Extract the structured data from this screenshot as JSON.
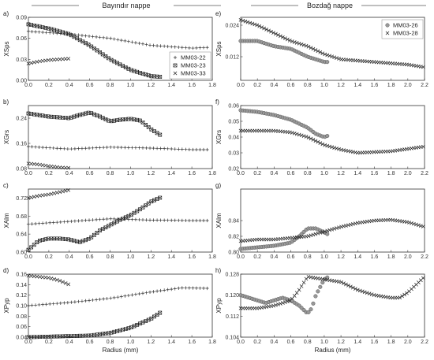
{
  "titles": {
    "left": "Bayındır nappe",
    "right": "Bozdağ nappe"
  },
  "chart_data": [
    {
      "panel": "a)",
      "type": "scatter",
      "ylabel": "XSps",
      "xlabel": "",
      "xlim": [
        0,
        1.8
      ],
      "ylim": [
        0,
        0.09
      ],
      "xticks": [
        "0.0",
        "0.2",
        "0.4",
        "0.6",
        "0.8",
        "1.0",
        "1.2",
        "1.4",
        "1.6",
        "1.8"
      ],
      "yticks": [
        "0.00",
        "0.03",
        "0.06",
        "0.09"
      ],
      "legend": {
        "position": "bottom-right",
        "entries": [
          "MM03-22",
          "MM03-23",
          "MM03-33"
        ]
      },
      "series": [
        {
          "name": "MM03-22",
          "marker": "plus",
          "x": [
            0,
            0.4,
            0.8,
            1.2,
            1.6,
            1.75
          ],
          "y": [
            0.07,
            0.066,
            0.06,
            0.05,
            0.046,
            0.047
          ]
        },
        {
          "name": "MM03-23",
          "marker": "boxx",
          "x": [
            0,
            0.2,
            0.4,
            0.6,
            0.8,
            1.0,
            1.2,
            1.3
          ],
          "y": [
            0.08,
            0.074,
            0.066,
            0.05,
            0.03,
            0.015,
            0.006,
            0.005
          ]
        },
        {
          "name": "MM03-33",
          "marker": "x",
          "x": [
            0,
            0.1,
            0.2,
            0.3,
            0.4
          ],
          "y": [
            0.024,
            0.027,
            0.029,
            0.03,
            0.031
          ]
        }
      ]
    },
    {
      "panel": "b)",
      "type": "scatter",
      "ylabel": "XGrs",
      "xlabel": "",
      "xlim": [
        0,
        1.8
      ],
      "ylim": [
        0.08,
        0.28
      ],
      "xticks": [
        "0.0",
        "0.2",
        "0.4",
        "0.6",
        "0.8",
        "1.0",
        "1.2",
        "1.4",
        "1.6",
        "1.8"
      ],
      "yticks": [
        "0.08",
        "0.16",
        "0.24"
      ],
      "series": [
        {
          "name": "MM03-22",
          "marker": "plus",
          "x": [
            0,
            0.4,
            0.8,
            1.2,
            1.6,
            1.75
          ],
          "y": [
            0.15,
            0.142,
            0.148,
            0.145,
            0.14,
            0.14
          ]
        },
        {
          "name": "MM03-23",
          "marker": "boxx",
          "x": [
            0,
            0.2,
            0.4,
            0.5,
            0.6,
            0.7,
            0.8,
            0.9,
            1.0,
            1.1,
            1.2,
            1.3
          ],
          "y": [
            0.255,
            0.245,
            0.24,
            0.25,
            0.258,
            0.245,
            0.23,
            0.235,
            0.238,
            0.232,
            0.205,
            0.185
          ]
        },
        {
          "name": "MM03-33",
          "marker": "x",
          "x": [
            0,
            0.1,
            0.2,
            0.3,
            0.4
          ],
          "y": [
            0.096,
            0.093,
            0.088,
            0.084,
            0.082
          ]
        }
      ]
    },
    {
      "panel": "c)",
      "type": "scatter",
      "ylabel": "XAlm",
      "xlabel": "",
      "xlim": [
        0,
        1.8
      ],
      "ylim": [
        0.6,
        0.74
      ],
      "xticks": [
        "0.0",
        "0.2",
        "0.4",
        "0.6",
        "0.8",
        "1.0",
        "1.2",
        "1.4",
        "1.6",
        "1.8"
      ],
      "yticks": [
        "0.60",
        "0.64",
        "0.68",
        "0.72"
      ],
      "series": [
        {
          "name": "MM03-22",
          "marker": "plus",
          "x": [
            0,
            0.4,
            0.8,
            1.2,
            1.6,
            1.75
          ],
          "y": [
            0.662,
            0.668,
            0.674,
            0.671,
            0.67,
            0.67
          ]
        },
        {
          "name": "MM03-23",
          "marker": "boxx",
          "x": [
            0,
            0.1,
            0.2,
            0.3,
            0.4,
            0.5,
            0.6,
            0.7,
            0.8,
            0.9,
            1.0,
            1.1,
            1.2,
            1.3
          ],
          "y": [
            0.605,
            0.625,
            0.63,
            0.63,
            0.628,
            0.622,
            0.63,
            0.648,
            0.66,
            0.672,
            0.682,
            0.696,
            0.712,
            0.722
          ]
        },
        {
          "name": "MM03-33",
          "marker": "x",
          "x": [
            0,
            0.1,
            0.2,
            0.3,
            0.4
          ],
          "y": [
            0.72,
            0.725,
            0.728,
            0.733,
            0.738
          ]
        }
      ]
    },
    {
      "panel": "d)",
      "type": "scatter",
      "ylabel": "XPyp",
      "xlabel": "Radius (mm)",
      "xlim": [
        0,
        1.8
      ],
      "ylim": [
        0.04,
        0.16
      ],
      "xticks": [
        "0.0",
        "0.2",
        "0.4",
        "0.6",
        "0.8",
        "1.0",
        "1.2",
        "1.4",
        "1.6",
        "1.8"
      ],
      "yticks": [
        "0.04",
        "0.06",
        "0.08",
        "0.10",
        "0.12",
        "0.14",
        "0.16"
      ],
      "series": [
        {
          "name": "MM03-22",
          "marker": "plus",
          "x": [
            0,
            0.4,
            0.8,
            1.2,
            1.5,
            1.75
          ],
          "y": [
            0.1,
            0.106,
            0.114,
            0.126,
            0.134,
            0.133
          ]
        },
        {
          "name": "MM03-23",
          "marker": "boxx",
          "x": [
            0,
            0.2,
            0.4,
            0.6,
            0.8,
            1.0,
            1.2,
            1.3
          ],
          "y": [
            0.04,
            0.041,
            0.042,
            0.043,
            0.048,
            0.058,
            0.075,
            0.088
          ]
        },
        {
          "name": "MM03-33",
          "marker": "x",
          "x": [
            0,
            0.1,
            0.2,
            0.3,
            0.4
          ],
          "y": [
            0.157,
            0.155,
            0.153,
            0.148,
            0.14
          ]
        }
      ]
    },
    {
      "panel": "e)",
      "type": "scatter",
      "ylabel": "XSps",
      "xlabel": "",
      "xlim": [
        0,
        2.2
      ],
      "ylim": [
        0.003,
        0.027
      ],
      "xticks": [
        "0.0",
        "0.2",
        "0.4",
        "0.6",
        "0.8",
        "1.0",
        "1.2",
        "1.4",
        "1.6",
        "1.8",
        "2.0",
        "2.2"
      ],
      "yticks": [
        "0.012",
        "0.024"
      ],
      "legend": {
        "position": "top-right",
        "entries": [
          "MM03-26",
          "MM03-28"
        ]
      },
      "series": [
        {
          "name": "MM03-26",
          "marker": "circle",
          "x": [
            0,
            0.2,
            0.4,
            0.6,
            0.8,
            1.0,
            1.05
          ],
          "y": [
            0.018,
            0.018,
            0.016,
            0.015,
            0.012,
            0.01,
            0.01
          ]
        },
        {
          "name": "MM03-28",
          "marker": "x",
          "x": [
            0,
            0.2,
            0.4,
            0.6,
            0.8,
            1.0,
            1.2,
            1.6,
            2.0,
            2.2
          ],
          "y": [
            0.026,
            0.024,
            0.021,
            0.018,
            0.016,
            0.013,
            0.011,
            0.01,
            0.009,
            0.008
          ]
        }
      ]
    },
    {
      "panel": "f)",
      "type": "scatter",
      "ylabel": "XGrs",
      "xlabel": "",
      "xlim": [
        0,
        2.2
      ],
      "ylim": [
        0.02,
        0.06
      ],
      "xticks": [
        "0.0",
        "0.2",
        "0.4",
        "0.6",
        "0.8",
        "1.0",
        "1.2",
        "1.4",
        "1.6",
        "1.8",
        "2.0",
        "2.2"
      ],
      "yticks": [
        "0.02",
        "0.03",
        "0.04",
        "0.05",
        "0.06"
      ],
      "series": [
        {
          "name": "MM03-26",
          "marker": "circle",
          "x": [
            0,
            0.2,
            0.4,
            0.6,
            0.8,
            0.9,
            1.0,
            1.05
          ],
          "y": [
            0.057,
            0.056,
            0.054,
            0.051,
            0.046,
            0.042,
            0.04,
            0.041
          ]
        },
        {
          "name": "MM03-28",
          "marker": "x",
          "x": [
            0,
            0.2,
            0.4,
            0.6,
            0.8,
            1.0,
            1.2,
            1.4,
            1.8,
            2.2
          ],
          "y": [
            0.044,
            0.044,
            0.044,
            0.043,
            0.04,
            0.035,
            0.032,
            0.03,
            0.031,
            0.034
          ]
        }
      ]
    },
    {
      "panel": "g)",
      "type": "scatter",
      "ylabel": "XAlm",
      "xlabel": "",
      "xlim": [
        0,
        2.2
      ],
      "ylim": [
        0.8,
        0.88
      ],
      "xticks": [
        "0.0",
        "0.2",
        "0.4",
        "0.6",
        "0.8",
        "1.0",
        "1.2",
        "1.4",
        "1.6",
        "1.8",
        "2.0",
        "2.2"
      ],
      "yticks": [
        "0.80",
        "0.82",
        "0.84"
      ],
      "series": [
        {
          "name": "MM03-26",
          "marker": "circle",
          "x": [
            0,
            0.2,
            0.4,
            0.6,
            0.7,
            0.8,
            0.9,
            1.0,
            1.05
          ],
          "y": [
            0.804,
            0.806,
            0.808,
            0.812,
            0.82,
            0.83,
            0.83,
            0.825,
            0.822
          ]
        },
        {
          "name": "MM03-28",
          "marker": "x",
          "x": [
            0,
            0.2,
            0.4,
            0.6,
            0.8,
            1.0,
            1.2,
            1.4,
            1.6,
            1.8,
            2.0,
            2.2
          ],
          "y": [
            0.814,
            0.816,
            0.816,
            0.818,
            0.82,
            0.826,
            0.832,
            0.837,
            0.84,
            0.841,
            0.838,
            0.832
          ]
        }
      ]
    },
    {
      "panel": "h)",
      "type": "scatter",
      "ylabel": "XPyp",
      "xlabel": "Radius (mm)",
      "xlim": [
        0,
        2.2
      ],
      "ylim": [
        0.104,
        0.128
      ],
      "xticks": [
        "0.0",
        "0.2",
        "0.4",
        "0.6",
        "0.8",
        "1.0",
        "1.2",
        "1.4",
        "1.6",
        "1.8",
        "2.0",
        "2.2"
      ],
      "yticks": [
        "0.104",
        "0.112",
        "0.120",
        "0.128"
      ],
      "series": [
        {
          "name": "MM03-26",
          "marker": "circle",
          "x": [
            0,
            0.2,
            0.3,
            0.4,
            0.5,
            0.6,
            0.7,
            0.8,
            0.85,
            0.9,
            1.0,
            1.05
          ],
          "y": [
            0.12,
            0.118,
            0.117,
            0.118,
            0.119,
            0.118,
            0.116,
            0.113,
            0.115,
            0.12,
            0.126,
            0.127
          ]
        },
        {
          "name": "MM03-28",
          "marker": "x",
          "x": [
            0,
            0.2,
            0.4,
            0.6,
            0.7,
            0.8,
            1.0,
            1.2,
            1.4,
            1.6,
            1.8,
            1.9,
            2.0,
            2.2
          ],
          "y": [
            0.115,
            0.115,
            0.116,
            0.118,
            0.122,
            0.127,
            0.126,
            0.125,
            0.122,
            0.12,
            0.119,
            0.119,
            0.121,
            0.127
          ]
        }
      ]
    }
  ]
}
